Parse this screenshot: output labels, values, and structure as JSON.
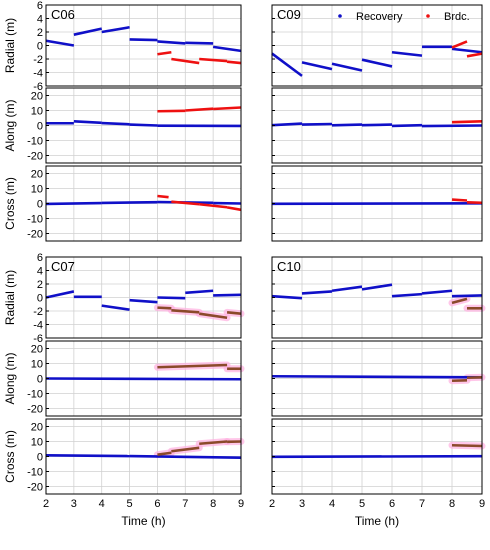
{
  "chart_data": {
    "type": "line",
    "xlabel": "Time (h)",
    "xlim": [
      2,
      9
    ],
    "x_ticks": [
      2,
      3,
      4,
      5,
      6,
      7,
      8,
      9
    ],
    "legend": {
      "placement": "top-right",
      "entries": [
        "Recovery",
        "Brdc."
      ]
    },
    "colors": {
      "Recovery": "#1010c8",
      "Brdc.": "#ee1111",
      "Brdc_bottom": "#8b4a2a",
      "highlight": "#ffb0e0"
    },
    "components": [
      {
        "key": "radial",
        "ylabel": "Radial (m)",
        "ylim": [
          -6,
          6
        ],
        "yticks": [
          6,
          4,
          2,
          0,
          -2,
          -4,
          -6
        ]
      },
      {
        "key": "along",
        "ylabel": "Along (m)",
        "ylim": [
          -25,
          25
        ],
        "yticks": [
          20,
          10,
          0,
          -10,
          -20
        ]
      },
      {
        "key": "cross",
        "ylabel": "Cross (m)",
        "ylim": [
          -25,
          25
        ],
        "yticks": [
          20,
          10,
          0,
          -10,
          -20
        ]
      }
    ],
    "satellites": [
      {
        "name": "C06",
        "column": 0,
        "row": 0,
        "radial": {
          "Recovery": [
            [
              [
                2.0,
                0.7
              ],
              [
                3.0,
                0.0
              ]
            ],
            [
              [
                3.0,
                1.6
              ],
              [
                4.0,
                2.5
              ]
            ],
            [
              [
                4.0,
                2.0
              ],
              [
                5.0,
                2.7
              ]
            ],
            [
              [
                5.0,
                0.9
              ],
              [
                6.0,
                0.8
              ]
            ],
            [
              [
                6.0,
                0.6
              ],
              [
                7.0,
                0.3
              ]
            ],
            [
              [
                7.0,
                0.4
              ],
              [
                8.0,
                0.3
              ]
            ],
            [
              [
                8.0,
                -0.2
              ],
              [
                9.0,
                -0.8
              ]
            ]
          ],
          "Brdc.": [
            [
              [
                6.0,
                -1.3
              ],
              [
                6.5,
                -1.0
              ]
            ],
            [
              [
                6.5,
                -2.0
              ],
              [
                7.5,
                -2.6
              ]
            ],
            [
              [
                7.5,
                -2.0
              ],
              [
                8.5,
                -2.3
              ]
            ],
            [
              [
                8.5,
                -2.4
              ],
              [
                9.0,
                -2.6
              ]
            ]
          ]
        },
        "along": {
          "Recovery": [
            [
              [
                2.0,
                1.5
              ],
              [
                3.0,
                1.5
              ]
            ],
            [
              [
                3.0,
                2.8
              ],
              [
                4.0,
                1.8
              ]
            ],
            [
              [
                4.0,
                1.6
              ],
              [
                5.0,
                0.8
              ]
            ],
            [
              [
                5.0,
                0.6
              ],
              [
                6.0,
                0.0
              ]
            ],
            [
              [
                6.0,
                -0.1
              ],
              [
                9.0,
                -0.3
              ]
            ]
          ],
          "Brdc.": [
            [
              [
                6.0,
                9.5
              ],
              [
                7.0,
                9.8
              ]
            ],
            [
              [
                7.0,
                10.0
              ],
              [
                8.0,
                11.2
              ]
            ],
            [
              [
                8.0,
                11.0
              ],
              [
                9.0,
                12.0
              ]
            ]
          ]
        },
        "cross": {
          "Recovery": [
            [
              [
                2.0,
                -0.3
              ],
              [
                4.0,
                0.3
              ]
            ],
            [
              [
                4.0,
                0.4
              ],
              [
                6.0,
                0.9
              ]
            ],
            [
              [
                6.0,
                1.0
              ],
              [
                8.0,
                0.5
              ]
            ],
            [
              [
                8.0,
                0.3
              ],
              [
                9.0,
                0.0
              ]
            ]
          ],
          "Brdc.": [
            [
              [
                6.0,
                5.0
              ],
              [
                6.4,
                4.2
              ]
            ],
            [
              [
                6.5,
                1.2
              ],
              [
                7.5,
                -0.5
              ]
            ],
            [
              [
                7.5,
                -0.5
              ],
              [
                8.5,
                -2.5
              ]
            ],
            [
              [
                8.5,
                -2.6
              ],
              [
                9.0,
                -4.2
              ]
            ]
          ]
        }
      },
      {
        "name": "C09",
        "column": 1,
        "row": 0,
        "radial": {
          "Recovery": [
            [
              [
                2.0,
                -1.2
              ],
              [
                3.0,
                -4.5
              ]
            ],
            [
              [
                3.0,
                -2.5
              ],
              [
                4.0,
                -3.5
              ]
            ],
            [
              [
                4.0,
                -2.7
              ],
              [
                5.0,
                -3.7
              ]
            ],
            [
              [
                5.0,
                -2.1
              ],
              [
                6.0,
                -3.1
              ]
            ],
            [
              [
                6.0,
                -1.0
              ],
              [
                7.0,
                -1.5
              ]
            ],
            [
              [
                7.0,
                -0.2
              ],
              [
                8.0,
                -0.2
              ]
            ],
            [
              [
                8.0,
                -0.5
              ],
              [
                9.0,
                -1.0
              ]
            ]
          ],
          "Brdc.": [
            [
              [
                8.0,
                -0.3
              ],
              [
                8.5,
                0.6
              ]
            ],
            [
              [
                8.5,
                -1.6
              ],
              [
                9.0,
                -1.2
              ]
            ]
          ]
        },
        "along": {
          "Recovery": [
            [
              [
                2.0,
                0.2
              ],
              [
                3.0,
                1.3
              ]
            ],
            [
              [
                3.0,
                0.6
              ],
              [
                4.0,
                1.0
              ]
            ],
            [
              [
                4.0,
                0.1
              ],
              [
                5.0,
                0.6
              ]
            ],
            [
              [
                5.0,
                0.2
              ],
              [
                6.0,
                0.6
              ]
            ],
            [
              [
                6.0,
                -0.3
              ],
              [
                7.0,
                0.2
              ]
            ],
            [
              [
                7.0,
                -0.4
              ],
              [
                9.0,
                0.0
              ]
            ]
          ],
          "Brdc.": [
            [
              [
                8.0,
                2.2
              ],
              [
                9.0,
                2.8
              ]
            ]
          ]
        },
        "cross": {
          "Recovery": [
            [
              [
                2.0,
                -0.2
              ],
              [
                9.0,
                0.1
              ]
            ]
          ],
          "Brdc.": [
            [
              [
                8.0,
                2.6
              ],
              [
                8.5,
                2.0
              ]
            ],
            [
              [
                8.5,
                0.8
              ],
              [
                9.0,
                0.5
              ]
            ]
          ]
        }
      },
      {
        "name": "C07",
        "column": 0,
        "row": 1,
        "radial": {
          "Recovery": [
            [
              [
                2.0,
                0.0
              ],
              [
                3.0,
                0.9
              ]
            ],
            [
              [
                3.0,
                0.1
              ],
              [
                4.0,
                0.1
              ]
            ],
            [
              [
                4.0,
                -1.2
              ],
              [
                5.0,
                -1.8
              ]
            ],
            [
              [
                5.0,
                -0.4
              ],
              [
                6.0,
                -0.7
              ]
            ],
            [
              [
                6.0,
                0.0
              ],
              [
                7.0,
                -0.1
              ]
            ],
            [
              [
                7.0,
                0.7
              ],
              [
                8.0,
                1.0
              ]
            ],
            [
              [
                8.0,
                0.3
              ],
              [
                9.0,
                0.4
              ]
            ]
          ],
          "Brdc.": [
            [
              [
                6.0,
                -1.5
              ],
              [
                6.5,
                -1.6
              ]
            ],
            [
              [
                6.5,
                -1.9
              ],
              [
                7.5,
                -2.2
              ]
            ],
            [
              [
                7.5,
                -2.4
              ],
              [
                8.5,
                -3.0
              ]
            ],
            [
              [
                8.5,
                -2.2
              ],
              [
                9.0,
                -2.4
              ]
            ]
          ]
        },
        "along": {
          "Recovery": [
            [
              [
                2.0,
                0.0
              ],
              [
                9.0,
                -0.5
              ]
            ]
          ],
          "Brdc.": [
            [
              [
                6.0,
                7.5
              ],
              [
                8.5,
                9.0
              ]
            ],
            [
              [
                8.5,
                6.5
              ],
              [
                9.0,
                6.5
              ]
            ]
          ]
        },
        "cross": {
          "Recovery": [
            [
              [
                2.0,
                0.8
              ],
              [
                5.0,
                0.3
              ]
            ],
            [
              [
                5.0,
                0.3
              ],
              [
                9.0,
                -0.8
              ]
            ]
          ],
          "Brdc.": [
            [
              [
                6.0,
                1.2
              ],
              [
                6.5,
                2.5
              ]
            ],
            [
              [
                6.5,
                3.5
              ],
              [
                7.5,
                5.8
              ]
            ],
            [
              [
                7.5,
                8.5
              ],
              [
                8.5,
                10.0
              ]
            ],
            [
              [
                8.5,
                9.8
              ],
              [
                9.0,
                10.0
              ]
            ]
          ]
        }
      },
      {
        "name": "C10",
        "column": 1,
        "row": 1,
        "radial": {
          "Recovery": [
            [
              [
                2.0,
                0.2
              ],
              [
                3.0,
                -0.1
              ]
            ],
            [
              [
                3.0,
                0.6
              ],
              [
                4.0,
                0.9
              ]
            ],
            [
              [
                4.0,
                1.0
              ],
              [
                5.0,
                1.6
              ]
            ],
            [
              [
                5.0,
                1.2
              ],
              [
                6.0,
                1.9
              ]
            ],
            [
              [
                6.0,
                0.2
              ],
              [
                7.0,
                0.5
              ]
            ],
            [
              [
                7.0,
                0.6
              ],
              [
                8.0,
                1.0
              ]
            ],
            [
              [
                8.0,
                0.2
              ],
              [
                9.0,
                0.3
              ]
            ]
          ],
          "Brdc.": [
            [
              [
                8.0,
                -0.8
              ],
              [
                8.5,
                -0.2
              ]
            ],
            [
              [
                8.5,
                -1.6
              ],
              [
                9.0,
                -1.6
              ]
            ]
          ]
        },
        "along": {
          "Recovery": [
            [
              [
                2.0,
                1.5
              ],
              [
                9.0,
                0.8
              ]
            ]
          ],
          "Brdc.": [
            [
              [
                8.0,
                -1.5
              ],
              [
                8.5,
                -1.2
              ]
            ],
            [
              [
                8.5,
                0.5
              ],
              [
                9.0,
                0.8
              ]
            ]
          ]
        },
        "cross": {
          "Recovery": [
            [
              [
                2.0,
                -0.2
              ],
              [
                9.0,
                0.2
              ]
            ]
          ],
          "Brdc.": [
            [
              [
                8.0,
                7.5
              ],
              [
                9.0,
                7.0
              ]
            ]
          ]
        }
      }
    ]
  }
}
